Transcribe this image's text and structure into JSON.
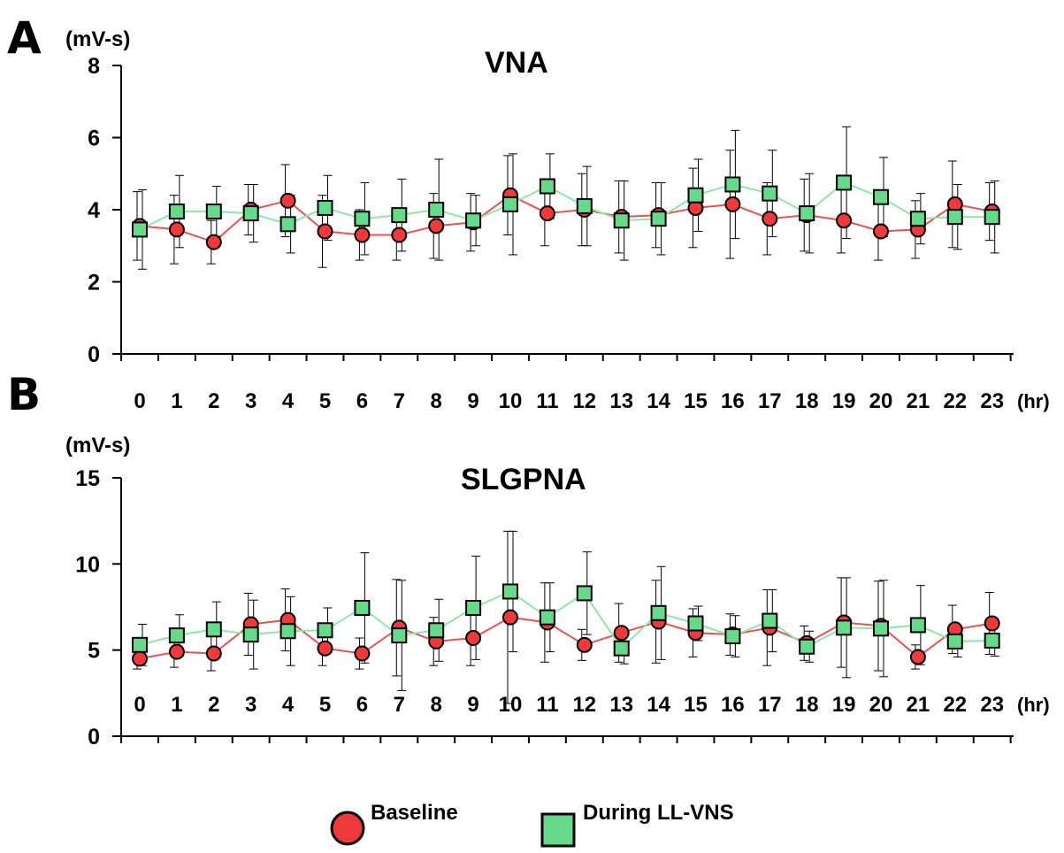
{
  "panels": {
    "a": {
      "letter": "A",
      "title": "VNA",
      "unit": "(mV-s)",
      "x_unit": "(hr)"
    },
    "b": {
      "letter": "B",
      "title": "SLGPNA",
      "unit": "(mV-s)",
      "x_unit": "(hr)"
    }
  },
  "legend": {
    "baseline_label": "Baseline",
    "llvns_label": "During LL-VNS"
  },
  "colors": {
    "baseline_fill": "#ee3a3a",
    "baseline_line": "#e55353",
    "llvns_fill": "#66d98a",
    "llvns_line": "#8fe6a8",
    "axis": "#000000"
  },
  "chart_data": [
    {
      "type": "line",
      "title": "VNA",
      "ylabel": "(mV-s)",
      "xlabel": "(hr)",
      "ylim": [
        0,
        8
      ],
      "yticks": [
        0,
        2,
        4,
        6,
        8
      ],
      "x": [
        0,
        1,
        2,
        3,
        4,
        5,
        6,
        7,
        8,
        9,
        10,
        11,
        12,
        13,
        14,
        15,
        16,
        17,
        18,
        19,
        20,
        21,
        22,
        23
      ],
      "series": [
        {
          "name": "Baseline",
          "marker": "circle",
          "values": [
            3.55,
            3.45,
            3.1,
            4.0,
            4.25,
            3.4,
            3.3,
            3.3,
            3.55,
            3.65,
            4.4,
            3.9,
            4.0,
            3.8,
            3.85,
            4.05,
            4.15,
            3.75,
            3.85,
            3.7,
            3.4,
            3.45,
            4.15,
            3.95
          ],
          "error": [
            0.95,
            0.95,
            0.6,
            0.7,
            1.0,
            1.0,
            0.7,
            0.7,
            0.9,
            0.8,
            1.1,
            0.9,
            1.0,
            1.0,
            0.9,
            1.1,
            1.5,
            1.0,
            1.0,
            0.9,
            0.8,
            0.8,
            1.2,
            0.8
          ]
        },
        {
          "name": "During LL-VNS",
          "marker": "square",
          "values": [
            3.45,
            3.95,
            3.95,
            3.9,
            3.6,
            4.05,
            3.75,
            3.85,
            4.0,
            3.7,
            4.15,
            4.65,
            4.1,
            3.7,
            3.75,
            4.4,
            4.7,
            4.45,
            3.9,
            4.75,
            4.35,
            3.75,
            3.8,
            3.8
          ],
          "error": [
            1.1,
            1.0,
            0.7,
            0.8,
            0.8,
            0.9,
            1.0,
            1.0,
            1.4,
            0.7,
            1.4,
            0.9,
            1.1,
            1.1,
            1.0,
            1.0,
            1.5,
            1.2,
            1.1,
            1.55,
            1.1,
            0.7,
            0.9,
            1.0
          ]
        }
      ]
    },
    {
      "type": "line",
      "title": "SLGPNA",
      "ylabel": "(mV-s)",
      "xlabel": "(hr)",
      "ylim": [
        0,
        15
      ],
      "yticks": [
        0,
        5,
        10,
        15
      ],
      "x": [
        0,
        1,
        2,
        3,
        4,
        5,
        6,
        7,
        8,
        9,
        10,
        11,
        12,
        13,
        14,
        15,
        16,
        17,
        18,
        19,
        20,
        21,
        22,
        23
      ],
      "series": [
        {
          "name": "Baseline",
          "marker": "circle",
          "values": [
            4.5,
            4.9,
            4.8,
            6.5,
            6.75,
            5.1,
            4.8,
            6.3,
            5.5,
            5.7,
            6.9,
            6.6,
            5.3,
            6.0,
            6.65,
            6.0,
            5.9,
            6.3,
            5.4,
            6.6,
            6.4,
            4.6,
            6.2,
            6.55
          ],
          "error": [
            0.6,
            0.9,
            1.0,
            1.8,
            1.8,
            1.0,
            0.9,
            2.8,
            1.4,
            1.6,
            5.0,
            2.3,
            0.9,
            1.7,
            2.4,
            1.4,
            1.2,
            2.2,
            1.0,
            2.6,
            2.6,
            0.7,
            1.4,
            1.8
          ]
        },
        {
          "name": "During LL-VNS",
          "marker": "square",
          "values": [
            5.3,
            5.85,
            6.2,
            5.9,
            6.1,
            6.15,
            7.45,
            5.85,
            6.15,
            7.45,
            8.4,
            6.9,
            8.3,
            5.1,
            7.15,
            6.55,
            5.8,
            6.7,
            5.2,
            6.3,
            6.25,
            6.45,
            5.5,
            5.55
          ],
          "error": [
            1.2,
            1.2,
            1.6,
            2.0,
            2.0,
            1.3,
            3.2,
            3.2,
            1.8,
            3.0,
            3.5,
            2.0,
            2.4,
            0.9,
            2.7,
            1.0,
            1.2,
            1.8,
            0.9,
            2.9,
            2.8,
            2.3,
            0.9,
            0.9
          ]
        }
      ]
    }
  ]
}
